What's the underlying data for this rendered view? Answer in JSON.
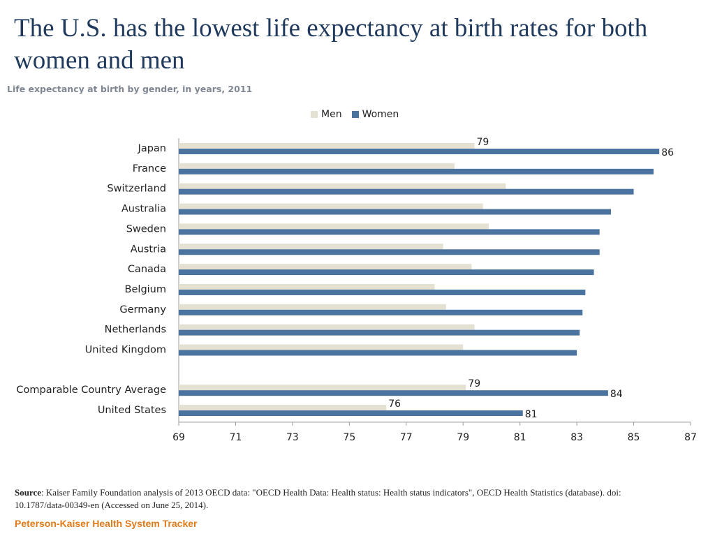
{
  "header": {
    "title": "The U.S. has the lowest life expectancy at birth rates for both women and men",
    "subtitle": "Life expectancy at birth by gender, in years, 2011"
  },
  "legend": [
    {
      "name": "Men",
      "color": "#e4e1d3"
    },
    {
      "name": "Women",
      "color": "#4a73a0"
    }
  ],
  "chart_data": {
    "type": "bar",
    "orientation": "horizontal",
    "title": "Life expectancy at birth by gender, in years, 2011",
    "xlabel": "",
    "ylabel": "",
    "xlim": [
      69,
      87
    ],
    "xticks": [
      69,
      71,
      73,
      75,
      77,
      79,
      81,
      83,
      85,
      87
    ],
    "categories": [
      "Japan",
      "France",
      "Switzerland",
      "Australia",
      "Sweden",
      "Austria",
      "Canada",
      "Belgium",
      "Germany",
      "Netherlands",
      "United Kingdom",
      "",
      "Comparable Country Average",
      "United States"
    ],
    "series": [
      {
        "name": "Men",
        "color": "#e4e1d3",
        "values": [
          79.4,
          78.7,
          80.5,
          79.7,
          79.9,
          78.3,
          79.3,
          78.0,
          78.4,
          79.4,
          79.0,
          null,
          79.1,
          76.3
        ]
      },
      {
        "name": "Women",
        "color": "#4a73a0",
        "values": [
          85.9,
          85.7,
          85.0,
          84.2,
          83.8,
          83.8,
          83.6,
          83.3,
          83.2,
          83.1,
          83.0,
          null,
          84.1,
          81.1
        ]
      }
    ],
    "data_labels": [
      {
        "category": "Japan",
        "series": "Men",
        "text": "79"
      },
      {
        "category": "Japan",
        "series": "Women",
        "text": "86"
      },
      {
        "category": "Comparable Country Average",
        "series": "Men",
        "text": "79"
      },
      {
        "category": "Comparable Country Average",
        "series": "Women",
        "text": "84"
      },
      {
        "category": "United States",
        "series": "Men",
        "text": "76"
      },
      {
        "category": "United States",
        "series": "Women",
        "text": "81"
      }
    ]
  },
  "footer": {
    "source_label": "Source",
    "source_text": ": Kaiser Family Foundation analysis of 2013 OECD data: \"OECD Health Data: Health status: Health status indicators\", OECD Health Statistics (database). doi: 10.1787/data-00349-en (Accessed on June 25, 2014).",
    "brand": "Peterson-Kaiser Health System Tracker"
  }
}
